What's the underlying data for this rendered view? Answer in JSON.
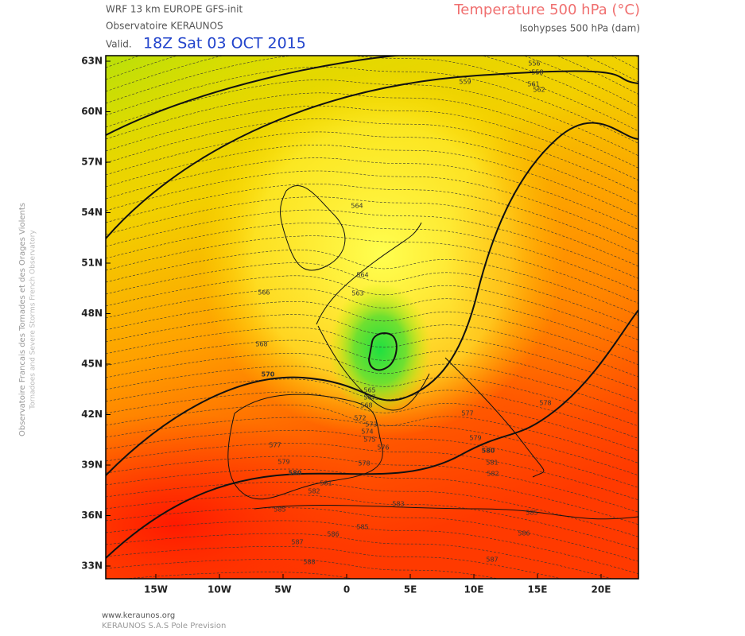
{
  "header": {
    "model": "WRF 13 km EUROPE  GFS-init",
    "source": "Observatoire KERAUNOS",
    "valid_prefix": "Valid.",
    "valid_time": "18Z Sat 03 OCT 2015",
    "field": "Temperature 500 hPa (°C)",
    "contours": "Isohypses 500 hPa (dam)"
  },
  "side": {
    "line1": "Observatoire Francais des Tornades et des Orages Violents",
    "line2": "Tornadoes and Severe Storms French Observatory"
  },
  "map": {
    "lat_labels": [
      "63N",
      "60N",
      "57N",
      "54N",
      "51N",
      "48N",
      "45N",
      "42N",
      "39N",
      "36N",
      "33N"
    ],
    "lon_labels": [
      "15W",
      "10W",
      "5W",
      "0",
      "5E",
      "10E",
      "15E",
      "20E"
    ],
    "contour_labels": [
      "556",
      "558",
      "559",
      "561",
      "562",
      "564",
      "564",
      "563",
      "566",
      "568",
      "570",
      "565",
      "567",
      "568",
      "572",
      "573",
      "574",
      "575",
      "576",
      "577",
      "577",
      "578",
      "579",
      "579",
      "578",
      "580",
      "580",
      "581",
      "582",
      "581",
      "582",
      "583",
      "585",
      "585",
      "585",
      "586",
      "586",
      "587",
      "587",
      "588"
    ]
  },
  "footer": {
    "url": "www.keraunos.org",
    "company": "KERAUNOS S.A.S Pole Prevision"
  }
}
